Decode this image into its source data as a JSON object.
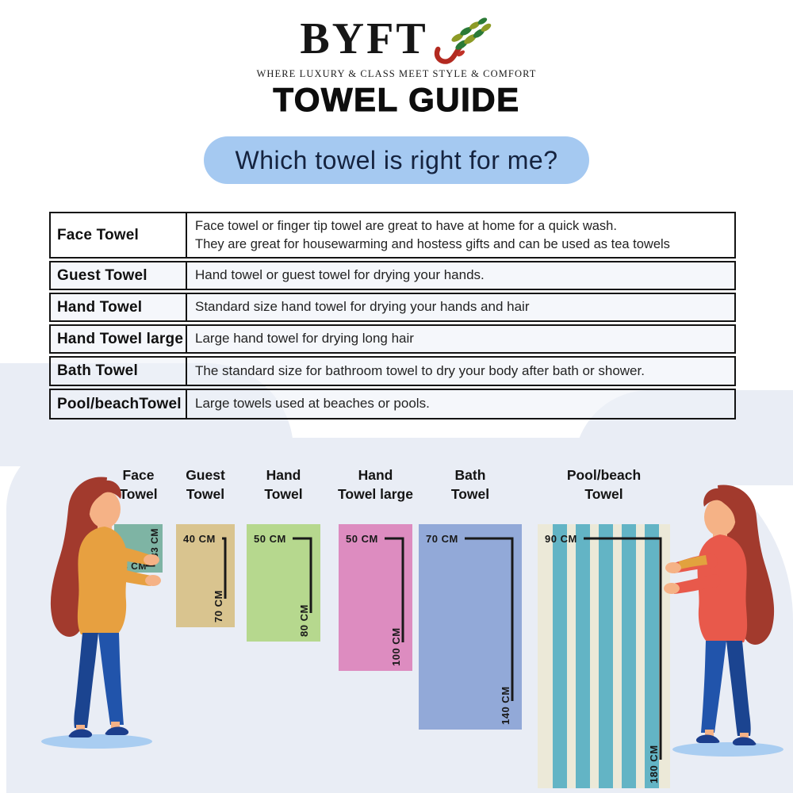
{
  "header": {
    "brand": "BYFT",
    "tagline": "WHERE LUXURY & CLASS MEET STYLE & COMFORT",
    "title": "TOWEL GUIDE",
    "question": "Which towel is right for me?"
  },
  "table": {
    "rows": [
      {
        "label": "Face Towel",
        "desc": [
          "Face towel or finger tip towel are great to have at home for a quick wash.",
          "They are great for housewarming and hostess gifts and can be used as tea towels"
        ]
      },
      {
        "label": "Guest Towel",
        "desc": [
          "Hand towel or guest towel for drying your hands."
        ]
      },
      {
        "label": "Hand Towel",
        "desc": [
          "Standard size hand towel for drying your hands and hair"
        ]
      },
      {
        "label": "Hand Towel large",
        "desc": [
          "Large hand towel for drying long hair"
        ]
      },
      {
        "label": "Bath Towel",
        "desc": [
          "The standard size for bathroom towel to dry your body after bath or shower."
        ]
      },
      {
        "label": "Pool/beachTowel",
        "desc": [
          "Large towels used at beaches or pools."
        ]
      }
    ]
  },
  "chart_data": {
    "type": "size-comparison",
    "unit": "cm",
    "towels": [
      {
        "name": [
          "Face",
          "Towel"
        ],
        "width_cm": 33,
        "height_cm": 33,
        "width_label": "33 CM",
        "height_label": "33 CM",
        "color": "#7eb4a4",
        "style": "face"
      },
      {
        "name": [
          "Guest",
          "Towel"
        ],
        "width_cm": 40,
        "height_cm": 70,
        "width_label": "40 CM",
        "height_label": "70 CM",
        "color": "#d9c48f",
        "style": "standard"
      },
      {
        "name": [
          "Hand",
          "Towel"
        ],
        "width_cm": 50,
        "height_cm": 80,
        "width_label": "50 CM",
        "height_label": "80 CM",
        "color": "#b6d88e",
        "style": "standard"
      },
      {
        "name": [
          "Hand",
          "Towel large"
        ],
        "width_cm": 50,
        "height_cm": 100,
        "width_label": "50 CM",
        "height_label": "100 CM",
        "color": "#dd8cc0",
        "style": "standard"
      },
      {
        "name": [
          "Bath",
          "Towel"
        ],
        "width_cm": 70,
        "height_cm": 140,
        "width_label": "70 CM",
        "height_label": "140 CM",
        "color": "#92a9d8",
        "style": "standard"
      },
      {
        "name": [
          "Pool/beach",
          "Towel"
        ],
        "width_cm": 90,
        "height_cm": 180,
        "width_label": "90 CM",
        "height_label": "180 CM",
        "color": "#ece9d8",
        "stripe_color": "#63b4c5",
        "style": "striped"
      }
    ]
  },
  "colors": {
    "banner_bg": "#a5c9f1",
    "banner_text": "#15233f",
    "background_blob": "#e9edf5",
    "table_border": "#141414",
    "dimension_line": "#191919",
    "logo_leaf_green": "#2b7a36",
    "logo_leaf_olive": "#8d9b26",
    "logo_stem_red": "#b32a20",
    "woman_left_top": "#e7a040",
    "woman_right_top": "#e8594b",
    "woman_hair": "#a23a2d",
    "woman_jeans": "#1e4da2",
    "woman_skin": "#f5b286",
    "shadow_ellipse": "#a9cdf1"
  }
}
